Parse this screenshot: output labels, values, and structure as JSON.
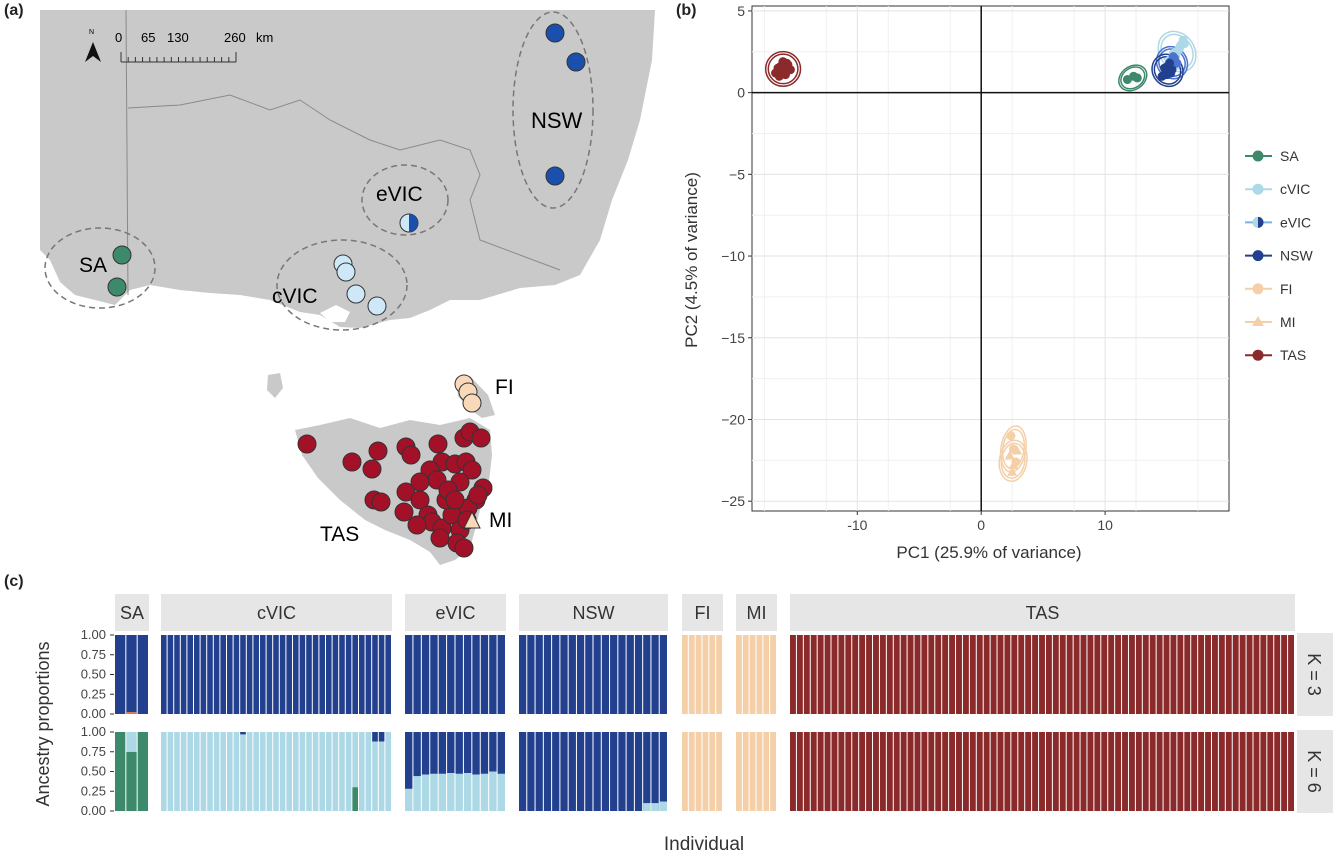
{
  "panel_labels": {
    "a": "(a)",
    "b": "(b)",
    "c": "(c)"
  },
  "colors": {
    "SA": "#3c8a6b",
    "cVIC": "#add8e6",
    "eVIC": "#8fbfe0",
    "NSW": "#23408e",
    "FI": "#f5cfa8",
    "MI": "#f5cfa8",
    "TAS": "#8b2a2a",
    "map_TAS": "#a31128",
    "map_NSW": "#1a4fae",
    "map_cVIC": "#cfe8f7",
    "map_FI": "#f8d9b8",
    "land": "#c9c9c9",
    "border": "#8a8a8a"
  },
  "map": {
    "scale_bar": {
      "ticks": [
        "0",
        "65",
        "130",
        "260"
      ],
      "unit": "km"
    },
    "north_symbol": "N",
    "region_labels": [
      "SA",
      "eVIC",
      "cVIC",
      "NSW",
      "FI",
      "TAS",
      "MI"
    ]
  },
  "chart_data": [
    {
      "type": "scatter",
      "xlabel": "PC1 (25.9% of variance)",
      "ylabel": "PC2 (4.5% of variance)",
      "xlim": [
        -18.5,
        20
      ],
      "ylim": [
        -25.6,
        5.3
      ],
      "xticks": [
        -10,
        0,
        10
      ],
      "xtick_labels": [
        "-10",
        "0",
        "10"
      ],
      "yticks": [
        5,
        0,
        -5,
        -10,
        -15,
        -20,
        -25
      ],
      "ytick_labels": [
        "5",
        "0",
        "−5",
        "−10",
        "−15",
        "−20",
        "−25"
      ],
      "grid": true,
      "legend_position": "right",
      "series": [
        {
          "name": "SA",
          "x": [
            11.8,
            12.3,
            12.6
          ],
          "y": [
            0.8,
            1.0,
            0.9
          ]
        },
        {
          "name": "cVIC",
          "x": [
            15.2,
            15.6,
            15.9,
            16.1,
            15.4,
            16.3,
            15.7,
            16.0,
            15.5,
            16.4
          ],
          "y": [
            2.0,
            2.3,
            2.6,
            2.9,
            1.8,
            3.2,
            2.2,
            2.7,
            2.4,
            3.0
          ]
        },
        {
          "name": "eVIC",
          "x": [
            15.0,
            15.3,
            15.6,
            15.2,
            15.5,
            15.8
          ],
          "y": [
            1.6,
            1.9,
            2.1,
            1.4,
            2.2,
            1.8
          ]
        },
        {
          "name": "NSW",
          "x": [
            14.6,
            14.9,
            15.1,
            15.3,
            14.8,
            15.2,
            15.0,
            15.4
          ],
          "y": [
            1.0,
            1.3,
            1.6,
            1.2,
            1.5,
            1.8,
            1.1,
            1.4
          ]
        },
        {
          "name": "FI",
          "x": [
            2.4,
            2.6,
            2.8
          ],
          "y": [
            -21.0,
            -21.8,
            -22.6
          ]
        },
        {
          "name": "MI",
          "x": [
            2.3,
            2.6,
            2.9,
            2.5
          ],
          "y": [
            -22.2,
            -22.8,
            -21.9,
            -23.2
          ]
        },
        {
          "name": "TAS",
          "x": [
            -16.6,
            -16.2,
            -15.9,
            -15.6,
            -16.4,
            -15.8,
            -16.0,
            -15.4,
            -16.3,
            -15.7
          ],
          "y": [
            1.2,
            1.6,
            1.3,
            1.7,
            1.5,
            1.1,
            1.9,
            1.4,
            1.0,
            1.8
          ]
        }
      ]
    },
    {
      "type": "bar",
      "stacked": true,
      "ylabel": "Ancestry proportions",
      "xlabel": "Individual",
      "ylim": [
        0,
        1
      ],
      "yticks": [
        0,
        0.25,
        0.5,
        0.75,
        1
      ],
      "ytick_labels": [
        "0.00",
        "0.25",
        "0.50",
        "0.75",
        "1.00"
      ],
      "groups": [
        {
          "name": "SA",
          "n": 3
        },
        {
          "name": "cVIC",
          "n": 35
        },
        {
          "name": "eVIC",
          "n": 12
        },
        {
          "name": "NSW",
          "n": 18
        },
        {
          "name": "FI",
          "n": 6
        },
        {
          "name": "MI",
          "n": 6
        },
        {
          "name": "TAS",
          "n": 73
        }
      ],
      "rows": [
        {
          "label": "K = 3",
          "group_fill": {
            "SA": "NSW",
            "cVIC": "NSW",
            "eVIC": "NSW",
            "NSW": "NSW",
            "FI": "FI",
            "MI": "FI",
            "TAS": "TAS"
          },
          "notes": "All individuals ~1.00 of a single ancestry; SA second individual shows a trace (0.02) of another component."
        },
        {
          "label": "K = 6",
          "group_fill": {
            "SA": "SA",
            "cVIC": "cVIC",
            "eVIC": "eVIC_mix",
            "NSW": "NSW",
            "FI": "FI",
            "MI": "FI",
            "TAS": "TAS"
          },
          "SA_values": [
            [
              1.0,
              0.0
            ],
            [
              0.75,
              0.25
            ],
            [
              1.0,
              0.0
            ]
          ],
          "eVIC_dark_fraction": [
            0.72,
            0.56,
            0.54,
            0.53,
            0.53,
            0.52,
            0.53,
            0.52,
            0.54,
            0.53,
            0.5,
            0.53
          ],
          "cVIC_special": [
            {
              "index": 12,
              "dark_top": 0.03
            },
            {
              "index": 29,
              "green": 0.3
            },
            {
              "index": 32,
              "dark_top": 0.12
            },
            {
              "index": 33,
              "dark_top": 0.12
            }
          ],
          "NSW_light_tail": [
            {
              "index": 15,
              "light": 0.1
            },
            {
              "index": 16,
              "light": 0.1
            },
            {
              "index": 17,
              "light": 0.12
            }
          ]
        }
      ]
    }
  ]
}
